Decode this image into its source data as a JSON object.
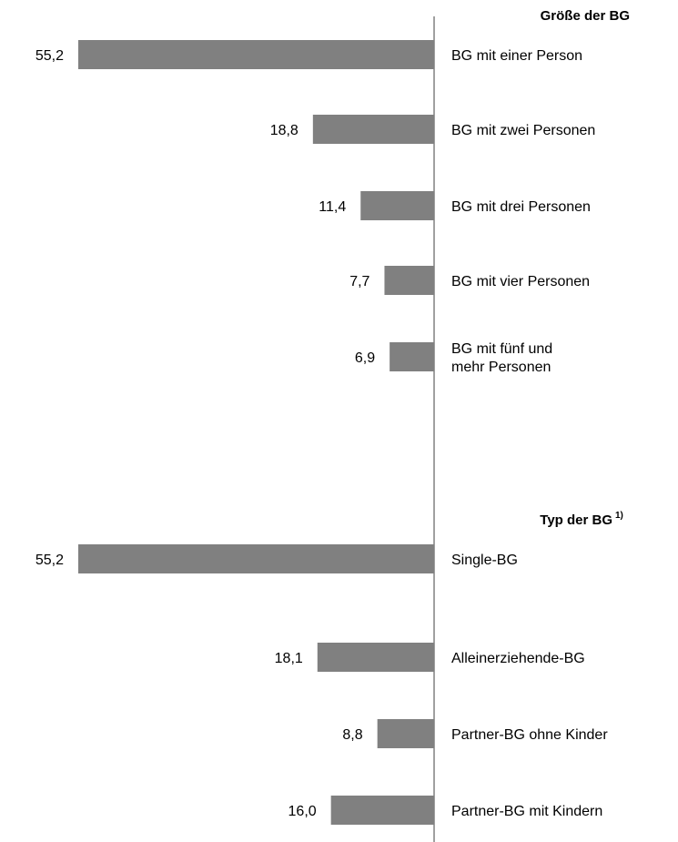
{
  "chart_data": [
    {
      "type": "bar",
      "orientation": "horizontal",
      "title": "Größe der BG",
      "title_note": "",
      "categories": [
        "BG mit einer Person",
        "BG mit zwei Personen",
        "BG mit drei Personen",
        "BG mit vier Personen",
        "BG mit fünf und mehr Personen"
      ],
      "category_lines": [
        [
          "BG mit einer Person"
        ],
        [
          "BG mit zwei Personen"
        ],
        [
          "BG mit drei Personen"
        ],
        [
          "BG mit vier Personen"
        ],
        [
          "BG mit fünf und",
          "mehr Personen"
        ]
      ],
      "values": [
        55.2,
        18.8,
        11.4,
        7.7,
        6.9
      ],
      "value_labels": [
        "55,2",
        "18,8",
        "11,4",
        "7,7",
        "6,9"
      ],
      "color": "#808080",
      "bar_direction": "left"
    },
    {
      "type": "bar",
      "orientation": "horizontal",
      "title": "Typ der BG",
      "title_note": "1)",
      "categories": [
        "Single-BG",
        "Alleinerziehende-BG",
        "Partner-BG ohne Kinder",
        "Partner-BG mit Kindern"
      ],
      "category_lines": [
        [
          "Single-BG"
        ],
        [
          "Alleinerziehende-BG"
        ],
        [
          "Partner-BG ohne Kinder"
        ],
        [
          "Partner-BG mit Kindern"
        ]
      ],
      "values": [
        55.2,
        18.1,
        8.8,
        16.0
      ],
      "value_labels": [
        "55,2",
        "18,1",
        "8,8",
        "16,0"
      ],
      "color": "#808080",
      "bar_direction": "left"
    }
  ]
}
